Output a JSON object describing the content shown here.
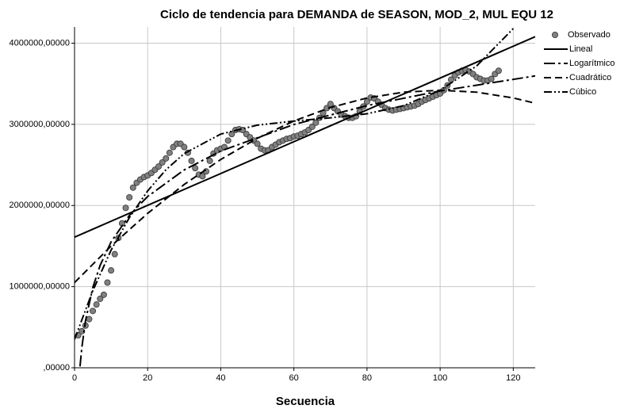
{
  "chart_data": {
    "type": "line",
    "title": "Ciclo de tendencia para DEMANDA de SEASON, MOD_2, MUL EQU 12",
    "x_label": "Secuencia",
    "xlim": [
      0,
      126
    ],
    "xticks": [
      0,
      20,
      40,
      60,
      80,
      100,
      120
    ],
    "ylim": [
      0,
      4200000
    ],
    "yticks": [
      {
        "value": 0,
        "label": ",00000"
      },
      {
        "value": 1000000,
        "label": "1000000,00000"
      },
      {
        "value": 2000000,
        "label": "2000000,00000"
      },
      {
        "value": 3000000,
        "label": "3000000,00000"
      },
      {
        "value": 4000000,
        "label": "4000000,00000"
      }
    ],
    "grid": true,
    "legend": "right",
    "series": [
      {
        "name": "Observado",
        "kind": "points",
        "color": "#808080",
        "x": [
          1,
          2,
          3,
          4,
          5,
          6,
          7,
          8,
          9,
          10,
          11,
          12,
          13,
          14,
          15,
          16,
          17,
          18,
          19,
          20,
          21,
          22,
          23,
          24,
          25,
          26,
          27,
          28,
          29,
          30,
          31,
          32,
          33,
          34,
          35,
          36,
          37,
          38,
          39,
          40,
          41,
          42,
          43,
          44,
          45,
          46,
          47,
          48,
          49,
          50,
          51,
          52,
          53,
          54,
          55,
          56,
          57,
          58,
          59,
          60,
          61,
          62,
          63,
          64,
          65,
          66,
          67,
          68,
          69,
          70,
          71,
          72,
          73,
          74,
          75,
          76,
          77,
          78,
          79,
          80,
          81,
          82,
          83,
          84,
          85,
          86,
          87,
          88,
          89,
          90,
          91,
          92,
          93,
          94,
          95,
          96,
          97,
          98,
          99,
          100,
          101,
          102,
          103,
          104,
          105,
          106,
          107,
          108,
          109,
          110,
          111,
          112,
          113,
          114,
          115,
          116
        ],
        "values": [
          400000,
          450000,
          520000,
          600000,
          700000,
          780000,
          850000,
          900000,
          1050000,
          1200000,
          1400000,
          1600000,
          1780000,
          1970000,
          2100000,
          2220000,
          2280000,
          2320000,
          2350000,
          2370000,
          2400000,
          2440000,
          2480000,
          2530000,
          2580000,
          2650000,
          2720000,
          2760000,
          2760000,
          2720000,
          2650000,
          2550000,
          2460000,
          2380000,
          2360000,
          2420000,
          2550000,
          2640000,
          2680000,
          2700000,
          2720000,
          2800000,
          2880000,
          2930000,
          2940000,
          2930000,
          2880000,
          2840000,
          2800000,
          2760000,
          2700000,
          2680000,
          2680000,
          2720000,
          2750000,
          2780000,
          2800000,
          2820000,
          2830000,
          2850000,
          2860000,
          2880000,
          2900000,
          2930000,
          2970000,
          3020000,
          3080000,
          3140000,
          3200000,
          3250000,
          3200000,
          3160000,
          3120000,
          3100000,
          3080000,
          3080000,
          3100000,
          3160000,
          3220000,
          3280000,
          3330000,
          3320000,
          3280000,
          3240000,
          3200000,
          3180000,
          3170000,
          3180000,
          3190000,
          3200000,
          3210000,
          3220000,
          3230000,
          3250000,
          3280000,
          3300000,
          3320000,
          3340000,
          3360000,
          3380000,
          3420000,
          3480000,
          3550000,
          3600000,
          3640000,
          3660000,
          3670000,
          3650000,
          3620000,
          3580000,
          3560000,
          3540000,
          3540000,
          3560000,
          3620000,
          3660000
        ]
      },
      {
        "name": "Lineal",
        "kind": "solid",
        "color": "#000000",
        "x": [
          0,
          126
        ],
        "values": [
          1610000,
          4080000
        ]
      },
      {
        "name": "Logarítmico",
        "kind": "long-dash-dot",
        "color": "#000000",
        "x": [
          1.5,
          2,
          3,
          5,
          7,
          10,
          15,
          20,
          30,
          40,
          60,
          80,
          100,
          126
        ],
        "values": [
          17000,
          250000,
          578000,
          990000,
          1262000,
          1551000,
          1878000,
          2111000,
          2438000,
          2671000,
          2998000,
          3231000,
          3411000,
          3597000
        ]
      },
      {
        "name": "Cuadrático",
        "kind": "dash",
        "color": "#000000",
        "x": [
          0,
          10,
          20,
          30,
          40,
          50,
          60,
          70,
          80,
          90,
          100,
          110,
          120,
          126
        ],
        "values": [
          1050000,
          1500000,
          1903000,
          2259000,
          2567000,
          2828000,
          3041000,
          3207000,
          3325000,
          3396000,
          3420000,
          3396000,
          3325000,
          3260000
        ]
      },
      {
        "name": "Cúbico",
        "kind": "dash-dot-dot",
        "color": "#000000",
        "x": [
          0,
          5,
          10,
          15,
          20,
          25,
          30,
          40,
          50,
          60,
          70,
          80,
          90,
          100,
          110,
          120
        ],
        "values": [
          350000,
          950000,
          1450000,
          1850000,
          2180000,
          2440000,
          2640000,
          2880000,
          2990000,
          3040000,
          3080000,
          3130000,
          3230000,
          3420000,
          3720000,
          4180000
        ]
      }
    ]
  }
}
